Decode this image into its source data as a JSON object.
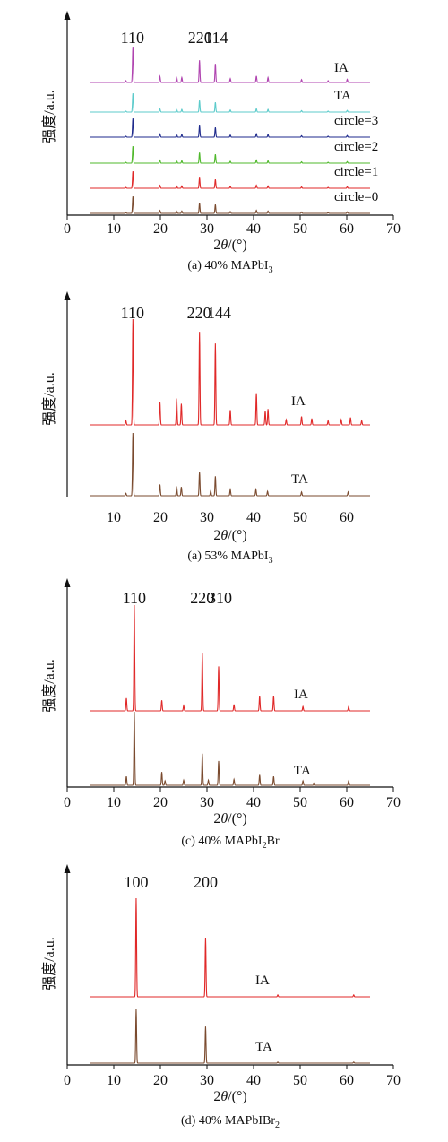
{
  "chart_data": [
    {
      "type": "line",
      "caption": "(a) 40% MAPbI",
      "caption_sub": "3",
      "xlabel": "2θ/(°)",
      "ylabel": "强度/a.u.",
      "xlim": [
        0,
        70
      ],
      "xticks": [
        0,
        10,
        20,
        30,
        40,
        50,
        60,
        70
      ],
      "data_range": [
        5,
        65
      ],
      "peak_labels": [
        {
          "text": "110",
          "x": 14
        },
        {
          "text": "220",
          "x": 28.5
        },
        {
          "text": "114",
          "x": 32
        }
      ],
      "peaks": [
        [
          12.6,
          0.05
        ],
        [
          14.1,
          1.0
        ],
        [
          19.9,
          0.17
        ],
        [
          23.5,
          0.15
        ],
        [
          24.6,
          0.14
        ],
        [
          28.4,
          0.62
        ],
        [
          31.8,
          0.52
        ],
        [
          35.0,
          0.11
        ],
        [
          40.6,
          0.18
        ],
        [
          43.1,
          0.14
        ],
        [
          50.3,
          0.08
        ],
        [
          56.0,
          0.05
        ],
        [
          60.1,
          0.09
        ]
      ],
      "series": [
        {
          "name": "circle=0",
          "color": "#7a4a2e",
          "scale": 0.95
        },
        {
          "name": "circle=1",
          "color": "#e02828",
          "scale": 0.95
        },
        {
          "name": "circle=2",
          "color": "#4fb82b",
          "scale": 0.95
        },
        {
          "name": "circle=3",
          "color": "#1e2a8c",
          "scale": 0.95
        },
        {
          "name": "TA",
          "color": "#5ccbcb",
          "scale": 0.95
        },
        {
          "name": "IA",
          "color": "#b044b0",
          "scale": 1.0
        }
      ]
    },
    {
      "type": "line",
      "caption": "(a) 53% MAPbI",
      "caption_sub": "3",
      "xlabel": "2θ/(°)",
      "ylabel": "强度/a.u.",
      "xlim": [
        0,
        70
      ],
      "xticks": [
        10,
        20,
        30,
        40,
        50,
        60
      ],
      "data_range": [
        5,
        65
      ],
      "peak_labels": [
        {
          "text": "110",
          "x": 14
        },
        {
          "text": "220",
          "x": 28.3
        },
        {
          "text": "144",
          "x": 32.6
        }
      ],
      "peaks": [],
      "series": [
        {
          "name": "TA",
          "color": "#7a4a2e",
          "peaks": [
            [
              12.6,
              0.04
            ],
            [
              14.1,
              1.0
            ],
            [
              19.9,
              0.18
            ],
            [
              23.5,
              0.15
            ],
            [
              24.5,
              0.14
            ],
            [
              28.4,
              0.38
            ],
            [
              30.8,
              0.08
            ],
            [
              31.8,
              0.31
            ],
            [
              35.0,
              0.1
            ],
            [
              40.5,
              0.1
            ],
            [
              43.0,
              0.07
            ],
            [
              50.3,
              0.06
            ],
            [
              60.3,
              0.06
            ]
          ]
        },
        {
          "name": "IA",
          "color": "#e02828",
          "peaks": [
            [
              12.6,
              0.04
            ],
            [
              14.1,
              1.0
            ],
            [
              19.9,
              0.22
            ],
            [
              23.5,
              0.25
            ],
            [
              24.5,
              0.2
            ],
            [
              28.4,
              0.88
            ],
            [
              31.8,
              0.77
            ],
            [
              35.0,
              0.14
            ],
            [
              40.6,
              0.3
            ],
            [
              42.5,
              0.13
            ],
            [
              43.1,
              0.15
            ],
            [
              47.0,
              0.05
            ],
            [
              50.3,
              0.08
            ],
            [
              52.5,
              0.06
            ],
            [
              56.0,
              0.04
            ],
            [
              58.8,
              0.05
            ],
            [
              60.8,
              0.07
            ],
            [
              63.2,
              0.04
            ]
          ]
        }
      ]
    },
    {
      "type": "line",
      "caption": "(c) 40% MAPbI",
      "caption_sub": "2",
      "caption_tail": "Br",
      "xlabel": "2θ/(°)",
      "ylabel": "强度/a.u.",
      "xlim": [
        0,
        70
      ],
      "xticks": [
        0,
        10,
        20,
        30,
        40,
        50,
        60,
        70
      ],
      "data_range": [
        5,
        65
      ],
      "peak_labels": [
        {
          "text": "110",
          "x": 14.4
        },
        {
          "text": "220",
          "x": 29.0
        },
        {
          "text": "310",
          "x": 32.8
        }
      ],
      "peaks": [],
      "series": [
        {
          "name": "TA",
          "color": "#7a4a2e",
          "peaks": [
            [
              12.7,
              0.12
            ],
            [
              14.4,
              1.0
            ],
            [
              20.3,
              0.18
            ],
            [
              21.0,
              0.06
            ],
            [
              25.0,
              0.07
            ],
            [
              29.0,
              0.43
            ],
            [
              30.3,
              0.07
            ],
            [
              32.5,
              0.33
            ],
            [
              35.8,
              0.08
            ],
            [
              41.3,
              0.14
            ],
            [
              44.3,
              0.12
            ],
            [
              50.6,
              0.06
            ],
            [
              53.0,
              0.04
            ],
            [
              60.4,
              0.06
            ]
          ]
        },
        {
          "name": "IA",
          "color": "#e02828",
          "peaks": [
            [
              12.7,
              0.12
            ],
            [
              14.4,
              1.0
            ],
            [
              20.3,
              0.1
            ],
            [
              25.0,
              0.05
            ],
            [
              29.0,
              0.55
            ],
            [
              32.5,
              0.42
            ],
            [
              35.8,
              0.06
            ],
            [
              41.3,
              0.14
            ],
            [
              44.3,
              0.14
            ],
            [
              50.6,
              0.04
            ],
            [
              60.4,
              0.04
            ]
          ]
        }
      ]
    },
    {
      "type": "line",
      "caption": "(d) 40% MAPbIBr",
      "caption_sub": "2",
      "xlabel": "2θ/(°)",
      "ylabel": "强度/a.u.",
      "xlim": [
        0,
        70
      ],
      "xticks": [
        0,
        10,
        20,
        30,
        40,
        50,
        60,
        70
      ],
      "data_range": [
        5,
        65
      ],
      "peak_labels": [
        {
          "text": "100",
          "x": 14.8
        },
        {
          "text": "200",
          "x": 29.7
        }
      ],
      "peaks": [],
      "series": [
        {
          "name": "TA",
          "color": "#7a4a2e",
          "peaks": [
            [
              14.8,
              1.0
            ],
            [
              29.7,
              0.68
            ],
            [
              45.2,
              0.02
            ],
            [
              61.5,
              0.02
            ]
          ]
        },
        {
          "name": "IA",
          "color": "#e02828",
          "peaks": [
            [
              14.8,
              1.0
            ],
            [
              29.7,
              0.6
            ],
            [
              45.2,
              0.02
            ],
            [
              61.5,
              0.02
            ]
          ]
        }
      ]
    }
  ]
}
